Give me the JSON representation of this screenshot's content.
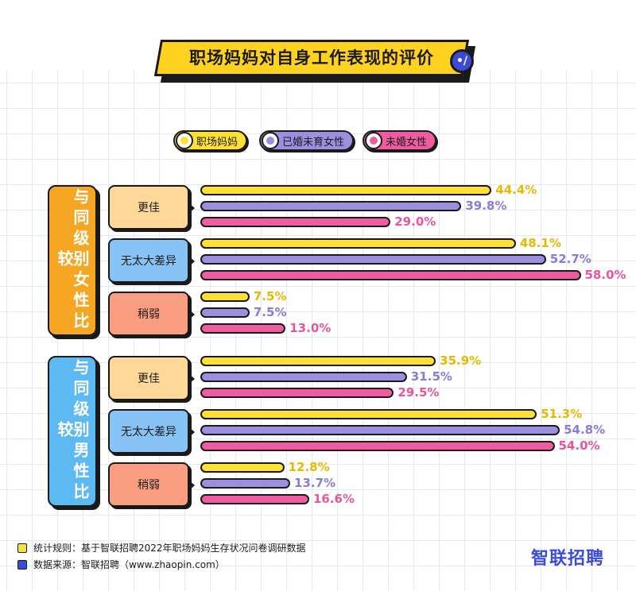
{
  "title": "职场妈妈对自身工作表现的评价",
  "title_badge": "•/",
  "legend": [
    {
      "label": "职场妈妈",
      "color": "#ffe135"
    },
    {
      "label": "已婚未育女性",
      "color": "#9b8fe0"
    },
    {
      "label": "未婚女性",
      "color": "#f05ca0"
    }
  ],
  "colors": {
    "series_fill": [
      "#ffe135",
      "#9b8fe0",
      "#f05ca0"
    ],
    "series_text": [
      "#e6b800",
      "#8a7bd6",
      "#e8559a"
    ],
    "group_fill": [
      "#f5a623",
      "#5db9f2"
    ],
    "sub_fill": [
      "#ffd89a",
      "#88c3f5",
      "#fa9e82"
    ],
    "accent": "#3b4bd8"
  },
  "chart_data": {
    "type": "bar",
    "orientation": "horizontal",
    "title": "职场妈妈对自身工作表现的评价",
    "unit": "%",
    "series_names": [
      "职场妈妈",
      "已婚未育女性",
      "未婚女性"
    ],
    "xlim": [
      0,
      60
    ],
    "groups": [
      {
        "label": "与同级别女性比较",
        "categories": [
          {
            "label": "更佳",
            "values": [
              44.4,
              39.8,
              29.0
            ],
            "display": [
              "44.4%",
              "39.8%",
              "29.0%"
            ]
          },
          {
            "label": "无太大差异",
            "values": [
              48.1,
              52.7,
              58.0
            ],
            "display": [
              "48.1%",
              "52.7%",
              "58.0%"
            ]
          },
          {
            "label": "稍弱",
            "values": [
              7.5,
              7.5,
              13.0
            ],
            "display": [
              "7.5%",
              "7.5%",
              "13.0%"
            ]
          }
        ]
      },
      {
        "label": "与同级别男性比较",
        "categories": [
          {
            "label": "更佳",
            "values": [
              35.9,
              31.5,
              29.5
            ],
            "display": [
              "35.9%",
              "31.5%",
              "29.5%"
            ]
          },
          {
            "label": "无太大差异",
            "values": [
              51.3,
              54.8,
              54.0
            ],
            "display": [
              "51.3%",
              "54.8%",
              "54.0%"
            ]
          },
          {
            "label": "稍弱",
            "values": [
              12.8,
              13.7,
              16.6
            ],
            "display": [
              "12.8%",
              "13.7%",
              "16.6%"
            ]
          }
        ]
      }
    ]
  },
  "footnotes": [
    {
      "text": "统计规则：基于智联招聘2022年职场妈妈生存状况问卷调研数据",
      "color": "#ffe135"
    },
    {
      "text": "数据来源：智联招聘（www.zhaopin.com）",
      "color": "#3b4bd8"
    }
  ],
  "brand": "智联招聘"
}
